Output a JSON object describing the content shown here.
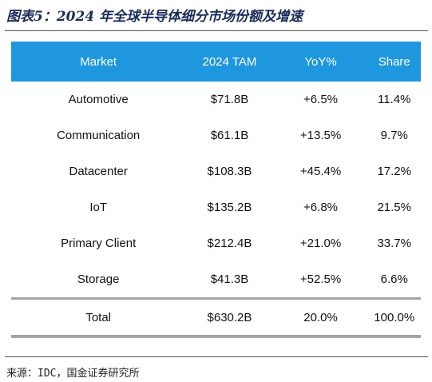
{
  "header": {
    "title": "图表5：2024 年全球半导体细分市场份额及增速"
  },
  "table": {
    "columns": [
      "Market",
      "2024 TAM",
      "YoY%",
      "Share"
    ],
    "rows": [
      [
        "Automotive",
        "$71.8B",
        "+6.5%",
        "11.4%"
      ],
      [
        "Communication",
        "$61.1B",
        "+13.5%",
        "9.7%"
      ],
      [
        "Datacenter",
        "$108.3B",
        "+45.4%",
        "17.2%"
      ],
      [
        "IoT",
        "$135.2B",
        "+6.8%",
        "21.5%"
      ],
      [
        "Primary Client",
        "$212.4B",
        "+21.0%",
        "33.7%"
      ],
      [
        "Storage",
        "$41.3B",
        "+52.5%",
        "6.6%"
      ]
    ],
    "total": [
      "Total",
      "$630.2B",
      "20.0%",
      "100.0%"
    ]
  },
  "footer": {
    "source": "来源：IDC，国金证券研究所"
  }
}
